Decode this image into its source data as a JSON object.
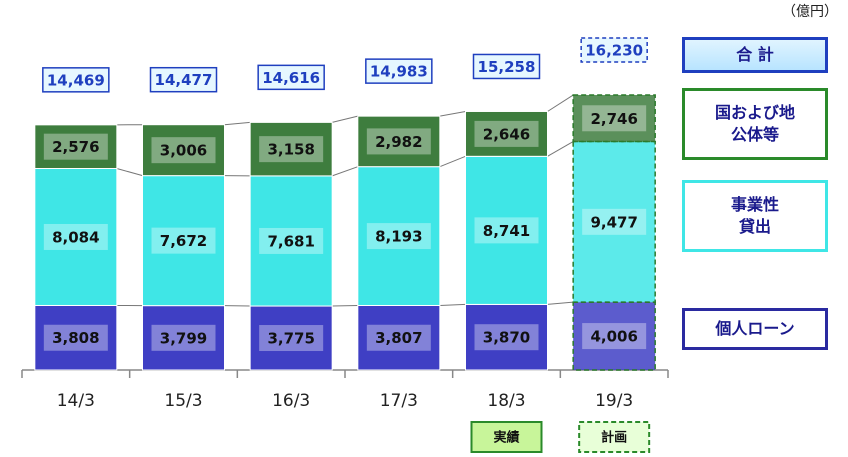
{
  "chart_data": {
    "type": "stacked_bar",
    "unit_label": "（億円）",
    "categories": [
      "14/3",
      "15/3",
      "16/3",
      "17/3",
      "18/3",
      "19/3"
    ],
    "series": [
      {
        "name": "個人ローン",
        "color": "#3f3fc4",
        "values": [
          3808,
          3799,
          3775,
          3807,
          3870,
          4006
        ],
        "value_labels": [
          "3,808",
          "3,799",
          "3,775",
          "3,807",
          "3,870",
          "4,006"
        ]
      },
      {
        "name": "事業性貸出",
        "color": "#3fe6e6",
        "values": [
          8084,
          7672,
          7681,
          8193,
          8741,
          9477
        ],
        "value_labels": [
          "8,084",
          "7,672",
          "7,681",
          "8,193",
          "8,741",
          "9,477"
        ]
      },
      {
        "name": "国および地公体等",
        "color": "#3e7d3e",
        "values": [
          2576,
          3006,
          3158,
          2982,
          2646,
          2746
        ],
        "value_labels": [
          "2,576",
          "3,006",
          "3,158",
          "2,982",
          "2,646",
          "2,746"
        ]
      }
    ],
    "totals": {
      "name": "合 計",
      "color": "#1f3fbf",
      "values": [
        14469,
        14477,
        14616,
        14983,
        15258,
        16230
      ],
      "value_labels": [
        "14,469",
        "14,477",
        "14,616",
        "14,983",
        "15,258",
        "16,230"
      ]
    },
    "annotations": [
      {
        "text": "実績",
        "x": "18/3"
      },
      {
        "text": "計画",
        "x": "19/3"
      }
    ]
  }
}
